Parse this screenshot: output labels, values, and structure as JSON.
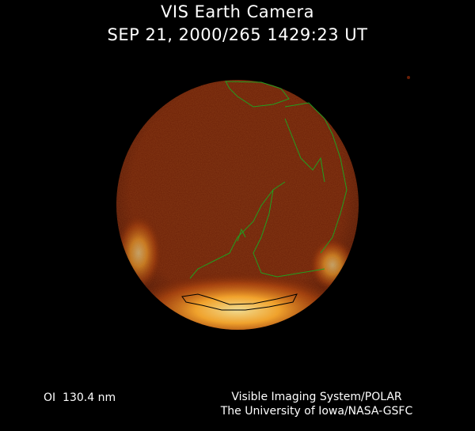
{
  "header": {
    "title": "VIS Earth Camera",
    "timestamp": "SEP 21, 2000/265 1429:23 UT"
  },
  "footer": {
    "band": "OI  130.4 nm",
    "instrument": "Visible Imaging System/POLAR",
    "institution": "The University of Iowa/NASA-GSFC"
  },
  "colors": {
    "background": "#000000",
    "disk": "#6a1e05",
    "aurora": "#ffb030",
    "coastline_day": "#20a020",
    "coastline_polar": "#000000"
  }
}
